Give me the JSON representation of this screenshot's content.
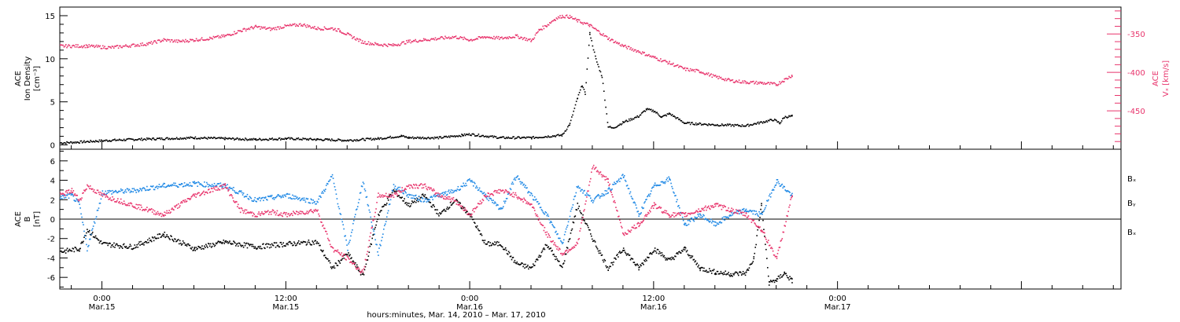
{
  "colors": {
    "black": "#000000",
    "pink": "#e8346c",
    "blue": "#1e88e5"
  },
  "x_axis": {
    "label": "hours:minutes, Mar. 14, 2010 – Mar. 17, 2010",
    "xlim": [
      -2.75,
      66.5
    ],
    "ticks": [
      {
        "x": 0,
        "time": "0:00",
        "date": "Mar.15"
      },
      {
        "x": 12,
        "time": "12:00",
        "date": "Mar.15"
      },
      {
        "x": 24,
        "time": "0:00",
        "date": "Mar.16"
      },
      {
        "x": 36,
        "time": "12:00",
        "date": "Mar.16"
      },
      {
        "x": 48,
        "time": "0:00",
        "date": "Mar.17"
      }
    ]
  },
  "chart_data": [
    {
      "type": "scatter",
      "panel": "top",
      "ylabel_left": [
        "ACE",
        "Ion Density",
        "[cm⁻³]"
      ],
      "ylabel_right": [
        "ACE",
        "Vₓ [km/s]"
      ],
      "ylim_left": [
        -0.5,
        16
      ],
      "yticks_left": [
        0,
        5,
        10,
        15
      ],
      "ylim_right": [
        -500,
        -315
      ],
      "yticks_right": [
        -350,
        -400,
        -450
      ],
      "series": [
        {
          "name": "",
          "axis": "left",
          "color": "#000000",
          "x": [
            -2.75,
            -1.5,
            -0.5,
            0.5,
            2,
            4,
            6,
            8,
            10,
            12,
            14,
            16,
            18,
            19.5,
            20,
            22,
            23.5,
            24,
            26,
            28,
            30,
            30.5,
            31,
            31.3,
            31.5,
            31.8,
            32.2,
            32.6,
            33,
            33.3,
            33.6,
            34,
            35,
            35.5,
            36,
            36.5,
            37,
            38,
            40,
            42,
            43.8,
            44.2,
            44.5,
            45
          ],
          "y": [
            0.3,
            0.4,
            0.5,
            0.6,
            0.7,
            0.8,
            0.9,
            0.8,
            0.7,
            0.8,
            0.7,
            0.6,
            0.8,
            1.1,
            0.9,
            0.9,
            1.2,
            1.3,
            0.9,
            0.9,
            1.2,
            2.5,
            5.5,
            7,
            6,
            13,
            10,
            8,
            2.2,
            2.0,
            2.3,
            2.7,
            3.4,
            4.2,
            4.0,
            3.3,
            3.7,
            2.6,
            2.4,
            2.3,
            3.0,
            2.6,
            3.3,
            3.4
          ]
        },
        {
          "name": "",
          "axis": "right",
          "color": "#e8346c",
          "x": [
            -2.75,
            -1,
            0.5,
            2,
            3,
            4,
            5,
            6,
            7,
            8,
            9,
            10,
            11,
            12,
            13,
            14,
            15,
            15.5,
            16,
            17,
            18,
            19,
            20,
            21,
            22,
            23,
            24,
            25,
            26,
            27,
            28,
            28.5,
            29,
            29.5,
            30,
            30.5,
            31,
            31.8,
            32.5,
            33,
            34,
            35,
            36,
            37,
            38,
            39,
            40,
            41,
            42,
            43,
            44,
            44.5,
            45
          ],
          "y": [
            -365,
            -365,
            -367,
            -364,
            -362,
            -357,
            -359,
            -357,
            -355,
            -352,
            -345,
            -340,
            -343,
            -339,
            -337,
            -342,
            -342,
            -345,
            -350,
            -360,
            -363,
            -364,
            -359,
            -357,
            -355,
            -353,
            -357,
            -353,
            -355,
            -352,
            -358,
            -344,
            -338,
            -330,
            -326,
            -327,
            -332,
            -338,
            -348,
            -355,
            -365,
            -372,
            -380,
            -387,
            -395,
            -398,
            -405,
            -410,
            -412,
            -413,
            -415,
            -409,
            -403
          ]
        }
      ]
    },
    {
      "type": "scatter",
      "panel": "bottom",
      "ylabel_left": [
        "ACE",
        "B",
        "[nT]"
      ],
      "ylim": [
        -7.2,
        7.2
      ],
      "yticks": [
        -6,
        -4,
        -2,
        0,
        2,
        4,
        6
      ],
      "zero_line": true,
      "legend": [
        "Bₓ",
        "Bᵧ",
        "Bₓ"
      ],
      "series": [
        {
          "name": "Bₓ",
          "color": "#000000",
          "x": [
            -2.75,
            -1.5,
            -1,
            0,
            2,
            4,
            6,
            8,
            10,
            12,
            14,
            15,
            16,
            17,
            18,
            19,
            20,
            21,
            22,
            23,
            24,
            25,
            26,
            27,
            28,
            29,
            30,
            31,
            32,
            33,
            34,
            35,
            36,
            37,
            38,
            39,
            40,
            41,
            42,
            42.5,
            43,
            43.5,
            44,
            44.5,
            45
          ],
          "y": [
            -3.3,
            -3.0,
            -1.0,
            -2.5,
            -2.8,
            -1.5,
            -3.0,
            -2.3,
            -2.8,
            -2.5,
            -2.3,
            -5.0,
            -3.5,
            -5.8,
            0.5,
            3.0,
            1.5,
            2.5,
            0.5,
            2.0,
            0.5,
            -2.5,
            -2.5,
            -4.5,
            -5.0,
            -2.5,
            -5.0,
            1.5,
            -2.0,
            -5.0,
            -3.0,
            -5.0,
            -3.0,
            -4.2,
            -3.0,
            -5.0,
            -5.4,
            -5.6,
            -5.5,
            -4.0,
            1.5,
            -6.5,
            -6.2,
            -5.5,
            -6.3
          ]
        },
        {
          "name": "Bᵧ",
          "color": "#1e88e5",
          "x": [
            -2.75,
            -2,
            -1.5,
            -1,
            0,
            2,
            4,
            6,
            8,
            10,
            12,
            14,
            15,
            16,
            17,
            18,
            19,
            20,
            21,
            22,
            23,
            24,
            25,
            26,
            27,
            28,
            29,
            30,
            31,
            32,
            33,
            34,
            35,
            36,
            37,
            38,
            39,
            40,
            41,
            42,
            43,
            44,
            45
          ],
          "y": [
            2.3,
            2.5,
            1.5,
            -3.0,
            2.8,
            3.0,
            3.5,
            3.7,
            3.5,
            2.0,
            2.5,
            1.8,
            4.5,
            -3.0,
            4.0,
            -3.5,
            3.5,
            2.5,
            2.0,
            2.5,
            3.0,
            4.0,
            2.5,
            1.0,
            4.5,
            2.5,
            0.5,
            -2.5,
            3.5,
            2.0,
            3.0,
            4.5,
            0.5,
            3.5,
            4.2,
            -0.5,
            0.5,
            -0.5,
            0.5,
            1.0,
            0.5,
            4.0,
            2.5
          ]
        },
        {
          "name": "Bₓ",
          "color": "#e8346c",
          "x": [
            -2.75,
            -2,
            -1.5,
            -1,
            0,
            2,
            4,
            6,
            8,
            9,
            10,
            11,
            12,
            14,
            15,
            16,
            17,
            18,
            19,
            20,
            21,
            22,
            23,
            24,
            25,
            26,
            27,
            28,
            29,
            30,
            31,
            32,
            33,
            34,
            35,
            36,
            37,
            38,
            39,
            40,
            41,
            42,
            43,
            44,
            45
          ],
          "y": [
            2.5,
            3.0,
            2.0,
            3.5,
            2.5,
            1.5,
            0.5,
            2.5,
            3.5,
            1.0,
            0.5,
            0.8,
            0.5,
            1.0,
            -3.0,
            -4.0,
            -5.5,
            2.5,
            2.5,
            3.5,
            3.5,
            2.5,
            2.0,
            0.5,
            2.5,
            3.0,
            2.5,
            1.5,
            -1.5,
            -3.5,
            -2.5,
            5.5,
            4.0,
            -1.5,
            -0.5,
            1.5,
            0.5,
            0.5,
            1.0,
            1.5,
            1.0,
            0.5,
            -1.0,
            -4.0,
            2.5
          ]
        }
      ]
    }
  ]
}
